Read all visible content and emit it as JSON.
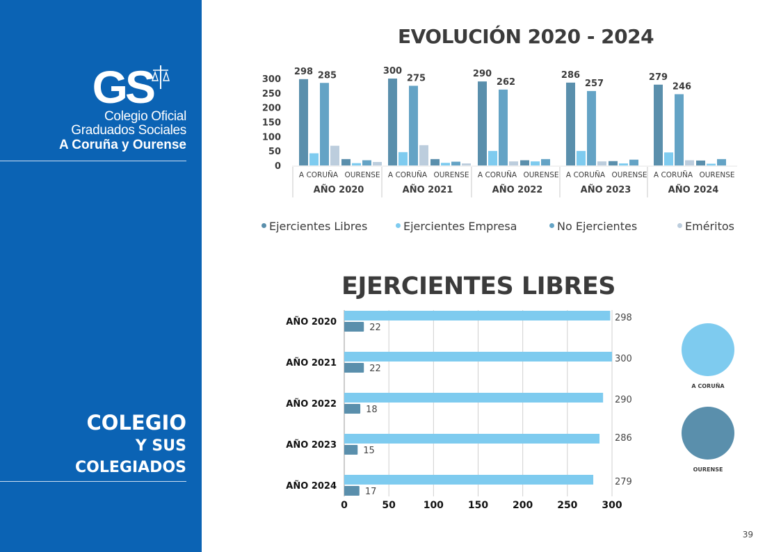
{
  "sidebar": {
    "logo": {
      "monogram": "GS",
      "line1": "Colegio Oficial",
      "line2": "Graduados Sociales",
      "line3": "A Coruña y Ourense"
    },
    "section": {
      "line1": "COLEGIO",
      "line2": "Y SUS",
      "line3": "COLEGIADOS"
    }
  },
  "page_number": "39",
  "colors": {
    "sidebar": "#0b63b4",
    "ejercientes_libres": "#5a8fac",
    "ejercientes_empresa": "#7ecbef",
    "no_ejercientes": "#64a3c5",
    "emeritos": "#bccddd",
    "coruna": "#7ecbef",
    "ourense": "#5a8fac"
  },
  "chart_data": [
    {
      "type": "bar",
      "title": "EVOLUCIÓN 2020 - 2024",
      "xlabel": "",
      "ylabel": "",
      "ylim": [
        0,
        300
      ],
      "yticks": [
        0,
        50,
        100,
        150,
        200,
        250,
        300
      ],
      "grid": false,
      "legend_position": "bottom",
      "groups": [
        {
          "label": "AÑO 2020",
          "subgroups": [
            {
              "label": "A CORUÑA",
              "values": [
                298,
                42,
                285,
                68
              ]
            },
            {
              "label": "OURENSE",
              "values": [
                22,
                8,
                18,
                12
              ]
            }
          ]
        },
        {
          "label": "AÑO 2021",
          "subgroups": [
            {
              "label": "A CORUÑA",
              "values": [
                300,
                46,
                275,
                70
              ]
            },
            {
              "label": "OURENSE",
              "values": [
                22,
                9,
                13,
                7
              ]
            }
          ]
        },
        {
          "label": "AÑO 2022",
          "subgroups": [
            {
              "label": "A CORUÑA",
              "values": [
                290,
                50,
                262,
                14
              ]
            },
            {
              "label": "OURENSE",
              "values": [
                18,
                14,
                22,
                0
              ]
            }
          ]
        },
        {
          "label": "AÑO 2023",
          "subgroups": [
            {
              "label": "A CORUÑA",
              "values": [
                286,
                50,
                257,
                14
              ]
            },
            {
              "label": "OURENSE",
              "values": [
                15,
                7,
                20,
                0
              ]
            }
          ]
        },
        {
          "label": "AÑO 2024",
          "subgroups": [
            {
              "label": "A CORUÑA",
              "values": [
                279,
                45,
                246,
                18
              ]
            },
            {
              "label": "OURENSE",
              "values": [
                17,
                6,
                22,
                0
              ]
            }
          ]
        }
      ],
      "series": [
        {
          "name": "Ejercientes Libres",
          "color": "#5a8fac"
        },
        {
          "name": "Ejercientes Empresa",
          "color": "#7ecbef"
        },
        {
          "name": "No Ejercientes",
          "color": "#64a3c5"
        },
        {
          "name": "Eméritos",
          "color": "#bccddd"
        }
      ],
      "data_labels": "A CORUÑA Ejercientes Libres and No Ejercientes only"
    },
    {
      "type": "bar",
      "orientation": "horizontal",
      "title": "EJERCIENTES LIBRES",
      "categories": [
        "AÑO 2020",
        "AÑO 2021",
        "AÑO 2022",
        "AÑO 2023",
        "AÑO 2024"
      ],
      "series": [
        {
          "name": "A CORUÑA",
          "color": "#7ecbef",
          "values": [
            298,
            300,
            290,
            286,
            279
          ]
        },
        {
          "name": "OURENSE",
          "color": "#5a8fac",
          "values": [
            22,
            22,
            18,
            15,
            17
          ]
        }
      ],
      "xlim": [
        0,
        300
      ],
      "xticks": [
        0,
        50,
        100,
        150,
        200,
        250,
        300
      ],
      "grid": true,
      "legend_position": "right"
    }
  ]
}
